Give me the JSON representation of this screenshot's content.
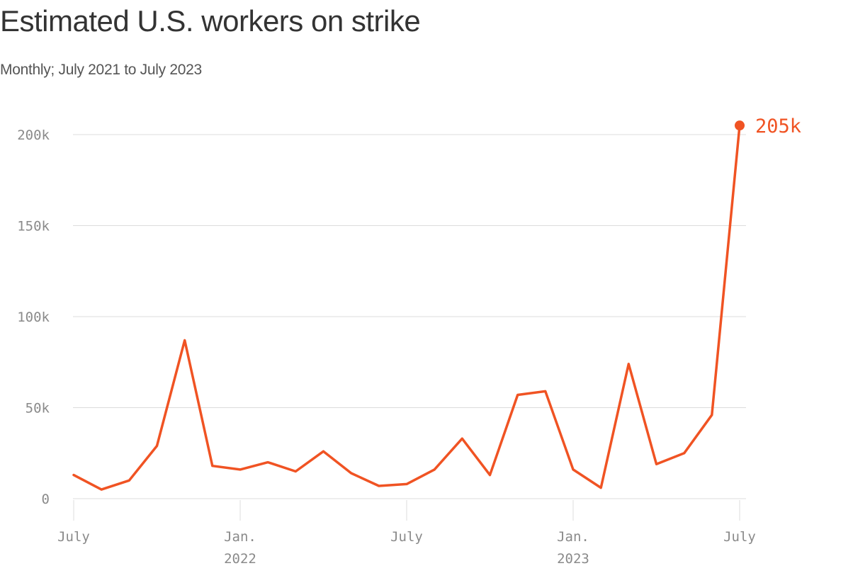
{
  "title": "Estimated U.S. workers on strike",
  "subtitle": "Monthly; July 2021 to July 2023",
  "colors": {
    "line": "#f05323",
    "grid": "#dcdcdc",
    "axis_text": "#8a8a8a"
  },
  "chart_data": {
    "type": "line",
    "title": "Estimated U.S. workers on strike",
    "subtitle": "Monthly; July 2021 to July 2023",
    "xlabel": "",
    "ylabel": "",
    "ylim": [
      0,
      200000
    ],
    "grid": true,
    "legend": "none",
    "y_ticks": [
      {
        "value": 0,
        "label": "0"
      },
      {
        "value": 50000,
        "label": "50k"
      },
      {
        "value": 100000,
        "label": "100k"
      },
      {
        "value": 150000,
        "label": "150k"
      },
      {
        "value": 200000,
        "label": "200k"
      }
    ],
    "x_ticks": [
      {
        "date": "2021-07",
        "label": "July",
        "sublabel": ""
      },
      {
        "date": "2022-01",
        "label": "Jan.",
        "sublabel": "2022"
      },
      {
        "date": "2022-07",
        "label": "July",
        "sublabel": ""
      },
      {
        "date": "2023-01",
        "label": "Jan.",
        "sublabel": "2023"
      },
      {
        "date": "2023-07",
        "label": "July",
        "sublabel": ""
      }
    ],
    "series": [
      {
        "x": [
          "2021-07",
          "2021-08",
          "2021-09",
          "2021-10",
          "2021-11",
          "2021-12",
          "2022-01",
          "2022-02",
          "2022-03",
          "2022-04",
          "2022-05",
          "2022-06",
          "2022-07",
          "2022-08",
          "2022-09",
          "2022-10",
          "2022-11",
          "2022-12",
          "2023-01",
          "2023-02",
          "2023-03",
          "2023-04",
          "2023-05",
          "2023-06",
          "2023-07"
        ],
        "values": [
          13000,
          5000,
          10000,
          29000,
          87000,
          18000,
          16000,
          20000,
          15000,
          26000,
          14000,
          7000,
          8000,
          16000,
          33000,
          13000,
          57000,
          59000,
          16000,
          6000,
          74000,
          19000,
          25000,
          46000,
          205000
        ]
      }
    ],
    "annotations": [
      {
        "date": "2023-07",
        "value": 205000,
        "text": "205k"
      }
    ]
  }
}
